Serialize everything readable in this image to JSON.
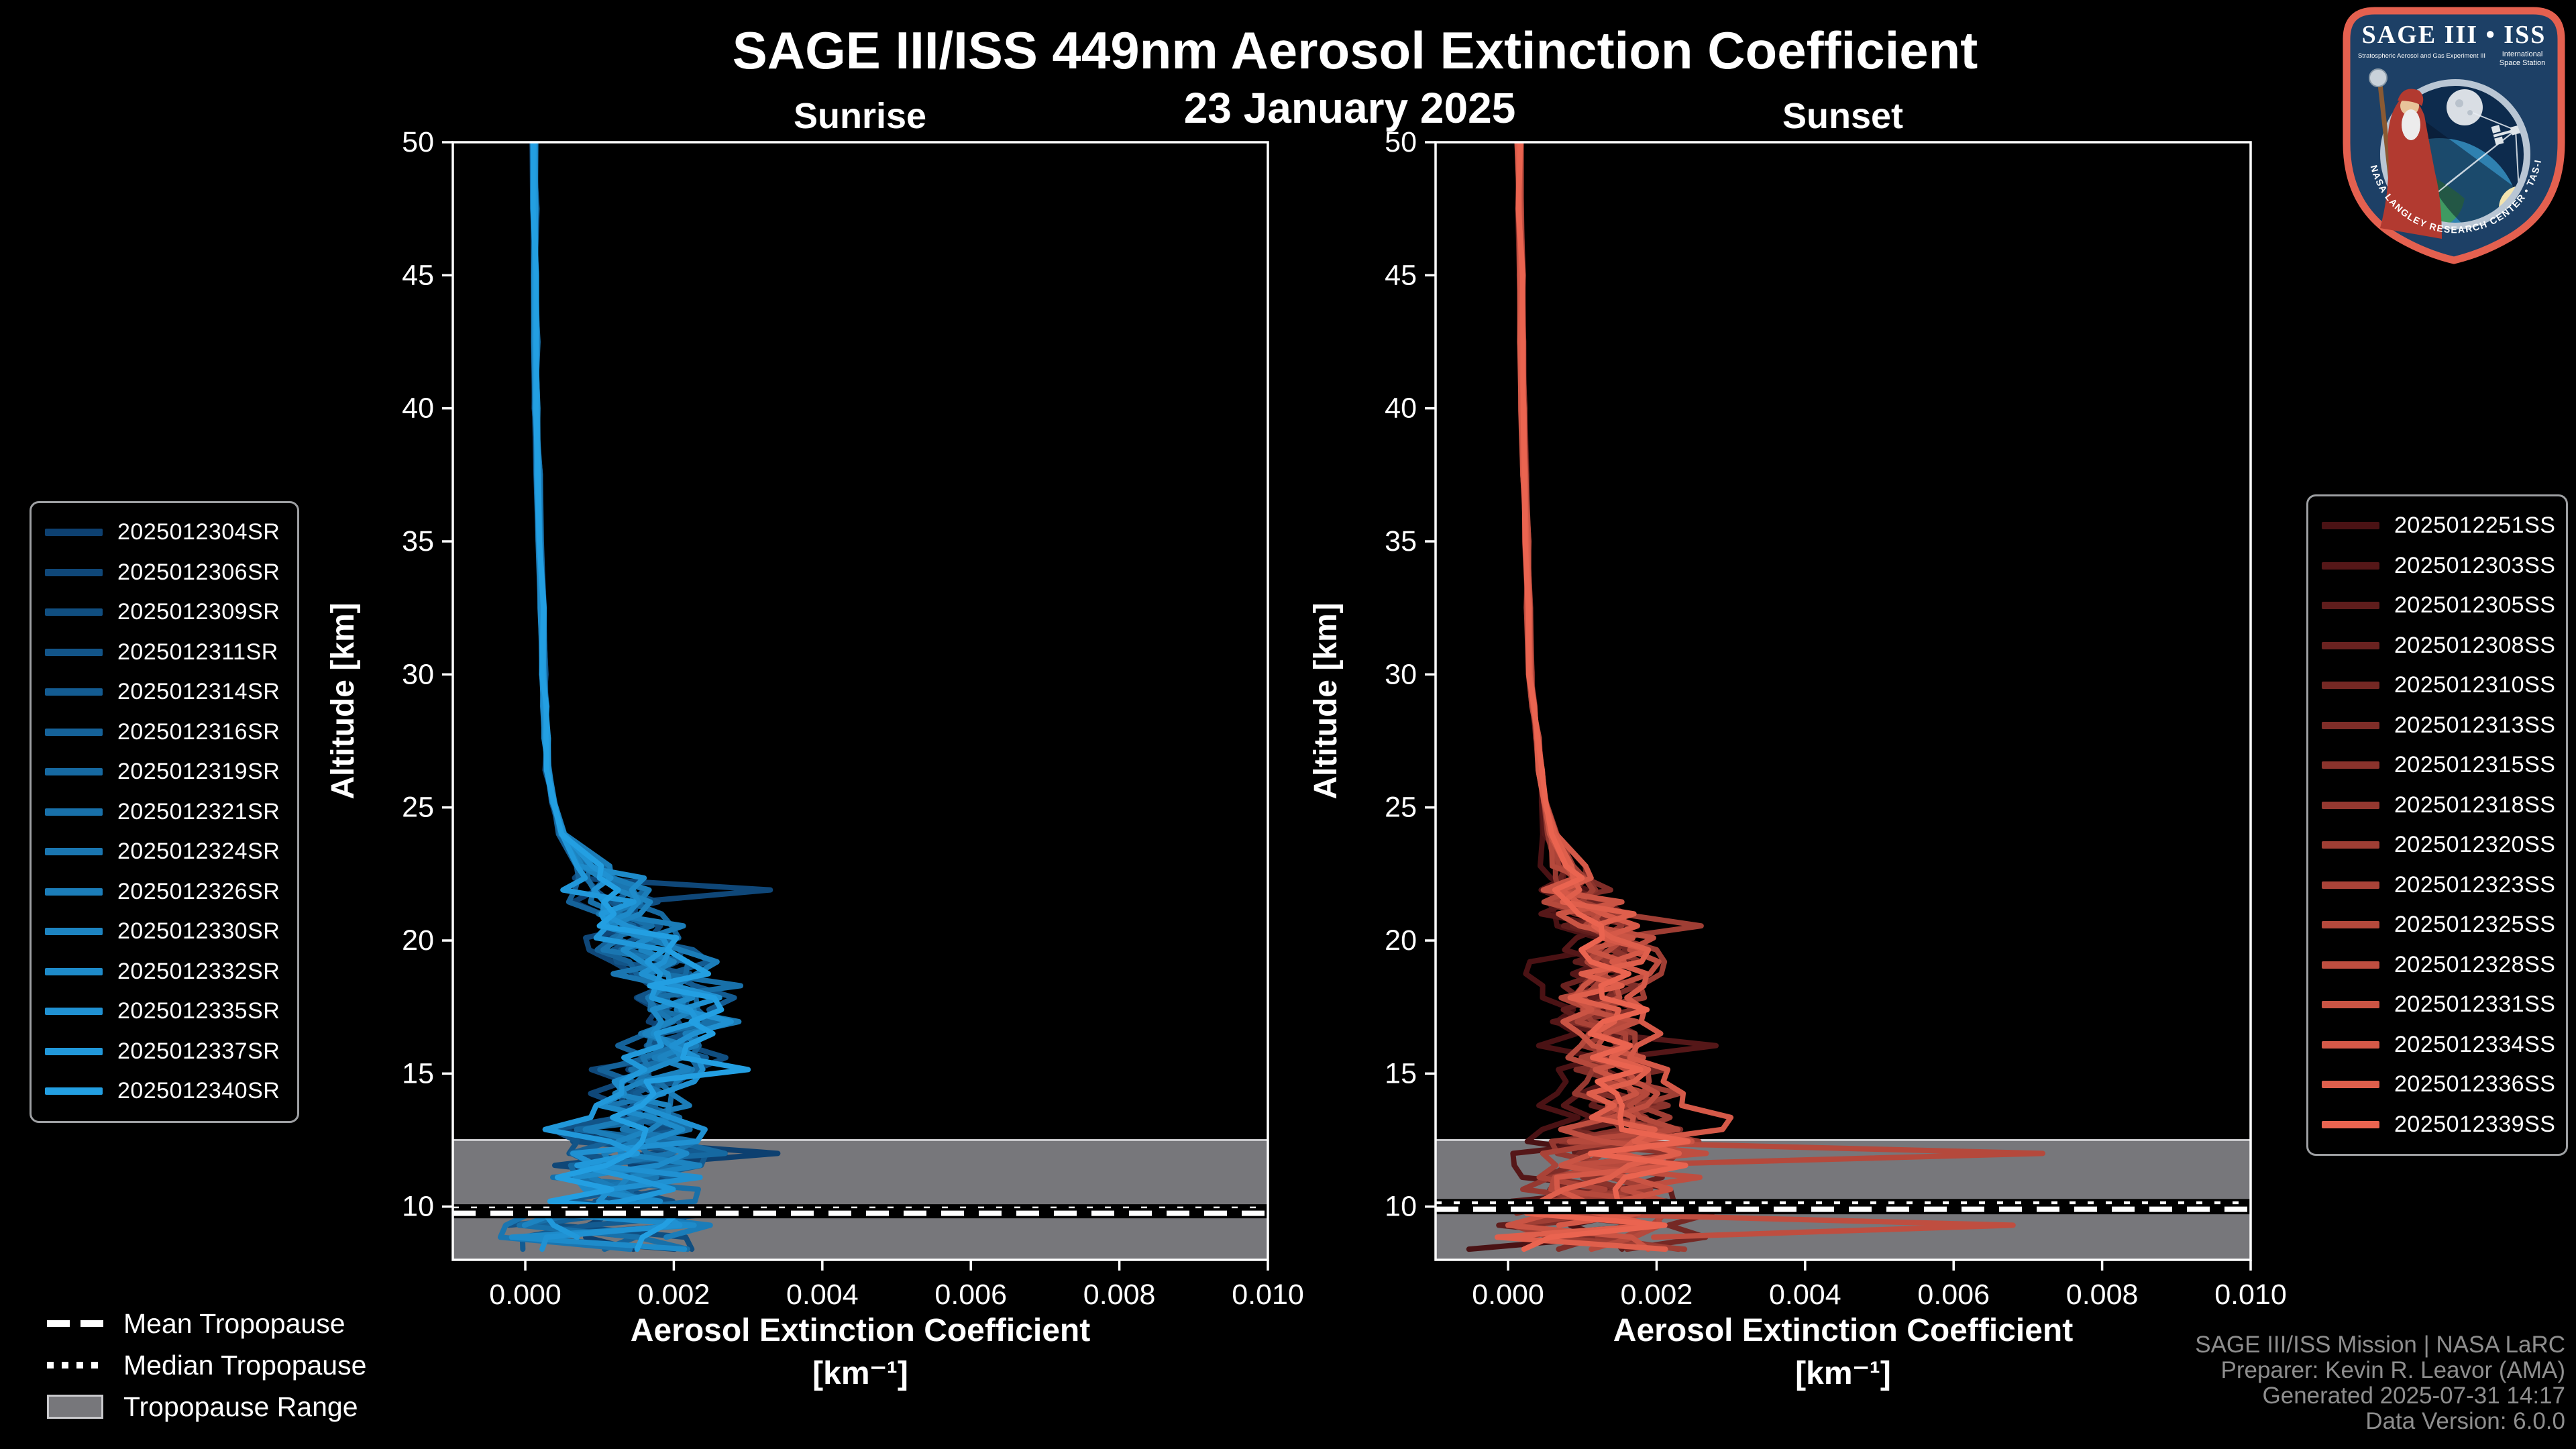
{
  "header": {
    "title": "SAGE III/ISS 449nm Aerosol Extinction Coefficient",
    "date": "23 January 2025"
  },
  "axis_labels": {
    "x_line1": "Aerosol Extinction Coefficient",
    "x_line2": "[km⁻¹]",
    "y": "Altitude [km]"
  },
  "tropopause_legend": {
    "mean": "Mean Tropopause",
    "median": "Median Tropopause",
    "range": "Tropopause Range"
  },
  "attribution": {
    "lines": [
      "SAGE III/ISS Mission | NASA LaRC",
      "Preparer: Kevin R. Leavor (AMA)",
      "Generated 2025-07-31 14:17",
      "Data Version: 6.0.0"
    ],
    "color": "#8e8e8e"
  },
  "logo": {
    "title": "SAGE III • ISS",
    "sub_left": "Stratospheric Aerosol and Gas Experiment III",
    "sub_right1": "International",
    "sub_right2": "Space Station",
    "arc_text": "BALL • NASA LANGLEY RESEARCH CENTER • TAS-I • ESA",
    "colors": {
      "border": "#e4604f",
      "field": "#1d4066",
      "ring": "#b9c6d4",
      "space": "#0d2b4d",
      "earth_water": "#2f81b0",
      "earth_land": "#3f9a62",
      "sun": "#f3e4af",
      "moon": "#d9dee4",
      "robe": "#b23a30",
      "beard": "#ececec",
      "staff": "#8a5a33"
    }
  },
  "chart_data": [
    {
      "type": "line",
      "panel": "sunrise",
      "title": "Sunrise",
      "xlabel": "Aerosol Extinction Coefficient [km⁻¹]",
      "ylabel": "Altitude [km]",
      "xlim": [
        -0.000976,
        0.01
      ],
      "ylim": [
        8,
        50
      ],
      "x_ticks": [
        0.0,
        0.002,
        0.004,
        0.006,
        0.008,
        0.01
      ],
      "x_tick_labels": [
        "0.000",
        "0.002",
        "0.004",
        "0.006",
        "0.008",
        "0.010"
      ],
      "y_ticks": [
        10,
        15,
        20,
        25,
        30,
        35,
        40,
        45,
        50
      ],
      "grid": false,
      "legend_position": "outside-left",
      "color_ramp": [
        "#0d4070",
        "#239fe2"
      ],
      "band_color": "#77777b",
      "band_edge_color": "#c9c9cc",
      "tropopause": {
        "mean_alt": 9.75,
        "median_alt": 9.9,
        "band_top": 12.5,
        "band_bottom": 8.0
      },
      "base_profile": {
        "alt": [
          50,
          40,
          30,
          26,
          24,
          23,
          22,
          21,
          20,
          19,
          18,
          17,
          16,
          15,
          14,
          13,
          12,
          11,
          10,
          9,
          8
        ],
        "ext": [
          0.00012,
          0.00015,
          0.00025,
          0.0003,
          0.0005,
          0.0008,
          0.0011,
          0.0013,
          0.0015,
          0.0018,
          0.0021,
          0.0021,
          0.0019,
          0.0017,
          0.0015,
          0.0014,
          0.0015,
          0.0014,
          0.0012,
          0.0011,
          0.0009
        ]
      },
      "noise_bands": [
        [
          50,
          24,
          3e-05
        ],
        [
          24,
          22,
          0.00018
        ],
        [
          22,
          13,
          0.00052
        ],
        [
          13,
          8,
          0.00105
        ]
      ],
      "series": [
        {
          "name": "2025012304SR",
          "scale": 0.9,
          "seed": 11,
          "bottom_alt": 8.0,
          "spikes": [
            [
              12.15,
              0.0034
            ]
          ]
        },
        {
          "name": "2025012306SR",
          "scale": 0.8,
          "seed": 22,
          "bottom_alt": 8.4,
          "spikes": [
            [
              21.8,
              0.0033
            ]
          ]
        },
        {
          "name": "2025012309SR",
          "scale": 1.05,
          "seed": 33,
          "bottom_alt": 8.1,
          "spikes": [
            [
              15.55,
              0.0027
            ]
          ]
        },
        {
          "name": "2025012311SR",
          "scale": 0.95,
          "seed": 44,
          "bottom_alt": 9.2,
          "spikes": []
        },
        {
          "name": "2025012314SR",
          "scale": 1.15,
          "seed": 55,
          "bottom_alt": 8.2,
          "spikes": []
        },
        {
          "name": "2025012316SR",
          "scale": 0.85,
          "seed": 66,
          "bottom_alt": 8.0,
          "spikes": []
        },
        {
          "name": "2025012319SR",
          "scale": 1.1,
          "seed": 77,
          "bottom_alt": 9.6,
          "spikes": []
        },
        {
          "name": "2025012321SR",
          "scale": 1.0,
          "seed": 88,
          "bottom_alt": 8.3,
          "spikes": [
            [
              18.3,
              0.0029
            ]
          ]
        },
        {
          "name": "2025012324SR",
          "scale": 0.9,
          "seed": 99,
          "bottom_alt": 8.0,
          "spikes": []
        },
        {
          "name": "2025012326SR",
          "scale": 1.2,
          "seed": 110,
          "bottom_alt": 8.6,
          "spikes": []
        },
        {
          "name": "2025012330SR",
          "scale": 1.0,
          "seed": 121,
          "bottom_alt": 9.0,
          "spikes": []
        },
        {
          "name": "2025012332SR",
          "scale": 0.95,
          "seed": 132,
          "bottom_alt": 8.1,
          "spikes": [
            [
              22.4,
              0.0016
            ]
          ]
        },
        {
          "name": "2025012335SR",
          "scale": 1.1,
          "seed": 143,
          "bottom_alt": 8.0,
          "spikes": []
        },
        {
          "name": "2025012337SR",
          "scale": 0.9,
          "seed": 154,
          "bottom_alt": 8.8,
          "spikes": []
        },
        {
          "name": "2025012340SR",
          "scale": 1.05,
          "seed": 165,
          "bottom_alt": 8.0,
          "spikes": [
            [
              15.0,
              0.003
            ]
          ]
        }
      ]
    },
    {
      "type": "line",
      "panel": "sunset",
      "title": "Sunset",
      "xlabel": "Aerosol Extinction Coefficient [km⁻¹]",
      "ylabel": "Altitude [km]",
      "xlim": [
        -0.000976,
        0.01
      ],
      "ylim": [
        8,
        50
      ],
      "x_ticks": [
        0.0,
        0.002,
        0.004,
        0.006,
        0.008,
        0.01
      ],
      "x_tick_labels": [
        "0.000",
        "0.002",
        "0.004",
        "0.006",
        "0.008",
        "0.010"
      ],
      "y_ticks": [
        10,
        15,
        20,
        25,
        30,
        35,
        40,
        45,
        50
      ],
      "grid": false,
      "legend_position": "outside-right",
      "color_ramp": [
        "#4a1214",
        "#ea6450"
      ],
      "band_color": "#77777b",
      "band_edge_color": "#c9c9cc",
      "tropopause": {
        "mean_alt": 9.9,
        "median_alt": 10.1,
        "band_top": 12.5,
        "band_bottom": 8.0
      },
      "base_profile": {
        "alt": [
          50,
          40,
          30,
          26,
          24,
          23,
          22,
          21,
          20,
          19,
          18,
          17,
          16,
          15,
          14,
          13,
          12,
          11,
          10,
          9,
          8
        ],
        "ext": [
          0.00015,
          0.0002,
          0.0003,
          0.00045,
          0.0006,
          0.0008,
          0.001,
          0.0012,
          0.0014,
          0.0014,
          0.0013,
          0.0013,
          0.0014,
          0.0015,
          0.0016,
          0.0016,
          0.0015,
          0.0014,
          0.0013,
          0.0012,
          0.0011
        ]
      },
      "noise_bands": [
        [
          50,
          24,
          3e-05
        ],
        [
          24,
          22,
          0.00018
        ],
        [
          22,
          13,
          0.00052
        ],
        [
          13,
          8,
          0.00105
        ]
      ],
      "series": [
        {
          "name": "2025012251SS",
          "scale": 0.55,
          "seed": 201,
          "bottom_alt": 8.0,
          "spikes": []
        },
        {
          "name": "2025012303SS",
          "scale": 0.7,
          "seed": 212,
          "bottom_alt": 8.5,
          "spikes": [
            [
              15.9,
              0.0028
            ]
          ]
        },
        {
          "name": "2025012305SS",
          "scale": 0.95,
          "seed": 223,
          "bottom_alt": 8.0,
          "spikes": []
        },
        {
          "name": "2025012308SS",
          "scale": 0.9,
          "seed": 234,
          "bottom_alt": 9.1,
          "spikes": []
        },
        {
          "name": "2025012310SS",
          "scale": 1.1,
          "seed": 245,
          "bottom_alt": 8.2,
          "spikes": []
        },
        {
          "name": "2025012313SS",
          "scale": 0.95,
          "seed": 256,
          "bottom_alt": 8.0,
          "spikes": []
        },
        {
          "name": "2025012315SS",
          "scale": 1.05,
          "seed": 267,
          "bottom_alt": 9.4,
          "spikes": []
        },
        {
          "name": "2025012318SS",
          "scale": 0.85,
          "seed": 278,
          "bottom_alt": 8.3,
          "spikes": []
        },
        {
          "name": "2025012320SS",
          "scale": 1.15,
          "seed": 289,
          "bottom_alt": 8.0,
          "spikes": [
            [
              20.6,
              0.0026
            ]
          ]
        },
        {
          "name": "2025012323SS",
          "scale": 1.0,
          "seed": 300,
          "bottom_alt": 8.7,
          "spikes": []
        },
        {
          "name": "2025012325SS",
          "scale": 0.9,
          "seed": 311,
          "bottom_alt": 8.1,
          "spikes": [
            [
              11.85,
              0.0072
            ]
          ]
        },
        {
          "name": "2025012328SS",
          "scale": 1.1,
          "seed": 322,
          "bottom_alt": 8.6,
          "spikes": [
            [
              9.3,
              0.0068
            ]
          ]
        },
        {
          "name": "2025012331SS",
          "scale": 0.95,
          "seed": 333,
          "bottom_alt": 8.0,
          "spikes": []
        },
        {
          "name": "2025012334SS",
          "scale": 1.2,
          "seed": 344,
          "bottom_alt": 8.9,
          "spikes": [
            [
              13.3,
              0.003
            ]
          ]
        },
        {
          "name": "2025012336SS",
          "scale": 1.0,
          "seed": 355,
          "bottom_alt": 8.0,
          "spikes": []
        },
        {
          "name": "2025012339SS",
          "scale": 1.05,
          "seed": 366,
          "bottom_alt": 8.2,
          "spikes": []
        }
      ]
    }
  ]
}
